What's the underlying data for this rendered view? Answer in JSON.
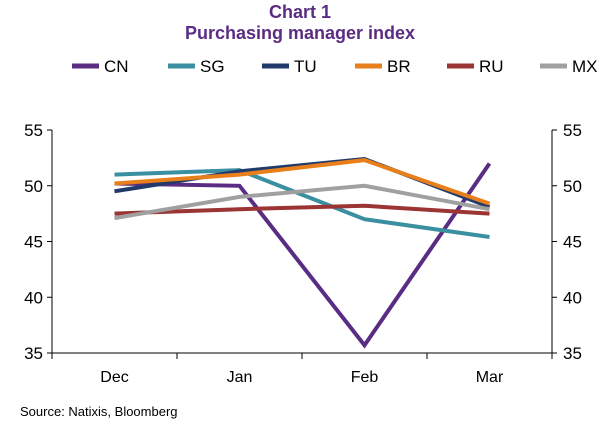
{
  "chart_data": {
    "type": "line",
    "title": "Chart 1",
    "subtitle": "Purchasing manager index",
    "categories": [
      "Dec",
      "Jan",
      "Feb",
      "Mar"
    ],
    "ylim": [
      35,
      55
    ],
    "yticks": [
      35,
      40,
      45,
      50,
      55
    ],
    "dual_y_axis": true,
    "grid": false,
    "legend_position": "top",
    "series": [
      {
        "name": "CN",
        "color": "#5B2C83",
        "values": [
          50.2,
          50.0,
          35.7,
          52.0
        ]
      },
      {
        "name": "SG",
        "color": "#3A8FA0",
        "values": [
          51.0,
          51.4,
          47.0,
          45.4
        ]
      },
      {
        "name": "TU",
        "color": "#1F3A6B",
        "values": [
          49.5,
          51.3,
          52.4,
          48.1
        ]
      },
      {
        "name": "BR",
        "color": "#E87F1A",
        "values": [
          50.2,
          51.0,
          52.3,
          48.4
        ]
      },
      {
        "name": "RU",
        "color": "#9B3433",
        "values": [
          47.5,
          47.9,
          48.2,
          47.5
        ]
      },
      {
        "name": "MX",
        "color": "#A0A0A0",
        "values": [
          47.1,
          49.0,
          50.0,
          47.9
        ]
      }
    ]
  },
  "source": "Source: Natixis, Bloomberg"
}
